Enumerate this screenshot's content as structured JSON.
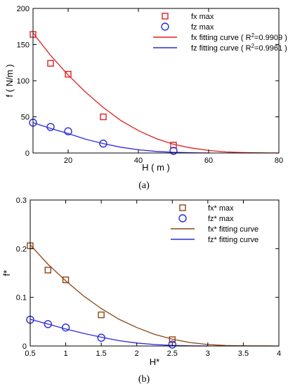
{
  "chart_data": [
    {
      "type": "scatter",
      "panel_label": "(a)",
      "xlabel": "H ( m )",
      "ylabel": "f ( N/m )",
      "xlim": [
        10,
        80
      ],
      "ylim": [
        0,
        200
      ],
      "xticks": [
        "20",
        "40",
        "60",
        "80"
      ],
      "yticks": [
        "0",
        "50",
        "100",
        "150",
        "200"
      ],
      "grid": false,
      "legend_position": "top-right",
      "series": [
        {
          "name": "fx max",
          "kind": "points",
          "marker": "square",
          "color": "#e02020",
          "x": [
            10,
            15,
            20,
            30,
            50
          ],
          "y": [
            164,
            124,
            109,
            50,
            11
          ]
        },
        {
          "name": "fz max",
          "kind": "points",
          "marker": "circle",
          "color": "#2a2adc",
          "x": [
            10,
            15,
            20,
            30,
            50
          ],
          "y": [
            42,
            36,
            30,
            13,
            3
          ]
        },
        {
          "name": "fx fitting curve ( R",
          "name_sup": "2",
          "name_suffix": "=0.9909 )",
          "kind": "curve",
          "color": "#e02020",
          "x": [
            10,
            15,
            20,
            25,
            30,
            35,
            40,
            45,
            50,
            55,
            60,
            65,
            70,
            75,
            80
          ],
          "y": [
            166,
            135,
            108,
            84,
            63,
            45,
            31,
            20,
            12,
            7,
            3.5,
            1.5,
            0.6,
            0.2,
            0
          ]
        },
        {
          "name": "fz fitting curve ( R",
          "name_sup": "2",
          "name_suffix": "=0.9961 )",
          "kind": "curve",
          "color": "#2a2adc",
          "x": [
            10,
            15,
            20,
            25,
            30,
            35,
            40,
            45,
            50,
            55,
            60
          ],
          "y": [
            42,
            34,
            27,
            19,
            13,
            8,
            4.5,
            2.2,
            1,
            0.4,
            0
          ]
        }
      ]
    },
    {
      "type": "scatter",
      "panel_label": "(b)",
      "xlabel": "H*",
      "ylabel": "f*",
      "xlim": [
        0.5,
        4
      ],
      "ylim": [
        0,
        0.3
      ],
      "xticks": [
        "0.5",
        "1",
        "1.5",
        "2",
        "2.5",
        "3",
        "3.5",
        "4"
      ],
      "yticks": [
        "0",
        "0.1",
        "0.2",
        "0.3"
      ],
      "grid": false,
      "legend_position": "top-right",
      "series": [
        {
          "name": "fx* max",
          "kind": "points",
          "marker": "square",
          "color": "#8b4513",
          "x": [
            0.5,
            0.75,
            1.0,
            1.5,
            2.5
          ],
          "y": [
            0.206,
            0.156,
            0.136,
            0.064,
            0.013
          ]
        },
        {
          "name": "fz* max",
          "kind": "points",
          "marker": "circle",
          "color": "#2a2adc",
          "x": [
            0.5,
            0.75,
            1.0,
            1.5,
            2.5
          ],
          "y": [
            0.054,
            0.045,
            0.038,
            0.017,
            0.003
          ]
        },
        {
          "name": "fx* fitting curve",
          "kind": "curve",
          "color": "#8b4513",
          "x": [
            0.5,
            0.75,
            1.0,
            1.25,
            1.5,
            1.75,
            2.0,
            2.25,
            2.5,
            2.75,
            3.0,
            3.25,
            3.5,
            4.0
          ],
          "y": [
            0.208,
            0.168,
            0.134,
            0.103,
            0.077,
            0.055,
            0.038,
            0.024,
            0.014,
            0.007,
            0.003,
            0.001,
            0.0003,
            0
          ]
        },
        {
          "name": "fz* fitting curve",
          "kind": "curve",
          "color": "#2a2adc",
          "x": [
            0.5,
            0.75,
            1.0,
            1.25,
            1.5,
            1.75,
            2.0,
            2.25,
            2.5,
            2.75,
            3.0
          ],
          "y": [
            0.055,
            0.045,
            0.035,
            0.026,
            0.018,
            0.011,
            0.006,
            0.003,
            0.0012,
            0.0003,
            0
          ]
        }
      ]
    }
  ]
}
